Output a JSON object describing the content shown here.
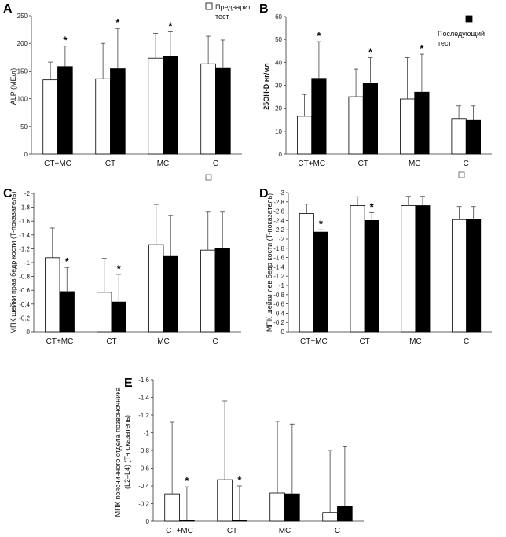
{
  "legend": {
    "pre_label": "Предварит.",
    "pre_label2": "тест",
    "post_label": "Последующий",
    "post_label2": "тест"
  },
  "chart_data": [
    {
      "panel": "A",
      "type": "bar",
      "ylabel": "ALP (МЕ/л)",
      "ylim": [
        0,
        250
      ],
      "reversed": false,
      "yticks": [
        "0",
        "50",
        "100",
        "150",
        "200",
        "250"
      ],
      "categories": [
        "CT+MC",
        "CT",
        "MC",
        "C"
      ],
      "series": [
        {
          "name": "Предварит. тест",
          "values": [
            134,
            136,
            173,
            163
          ],
          "errors": [
            32,
            64,
            45,
            50
          ]
        },
        {
          "name": "Последующий тест",
          "values": [
            158,
            154,
            177,
            156
          ],
          "errors": [
            37,
            73,
            44,
            50
          ]
        }
      ],
      "significant": [
        true,
        true,
        true,
        false
      ]
    },
    {
      "panel": "B",
      "type": "bar",
      "ylabel": "25OH-D нг/мл",
      "ylim": [
        0,
        60
      ],
      "reversed": false,
      "yticks": [
        "0",
        "10",
        "20",
        "30",
        "40",
        "50",
        "60"
      ],
      "categories": [
        "CT+MC",
        "CT",
        "MC",
        "C"
      ],
      "series": [
        {
          "name": "Предварит. тест",
          "values": [
            16.5,
            25,
            24,
            15.5
          ],
          "errors": [
            9.5,
            12,
            18,
            5.5
          ]
        },
        {
          "name": "Последующий тест",
          "values": [
            33,
            31,
            27,
            15
          ],
          "errors": [
            16,
            11,
            16.5,
            6
          ]
        }
      ],
      "significant": [
        true,
        true,
        true,
        false
      ]
    },
    {
      "panel": "C",
      "type": "bar",
      "ylabel": "МПК шейки прав бедр кости (T-показатель)",
      "ylim": [
        0,
        -2
      ],
      "reversed": true,
      "yticks": [
        "0",
        "-0.2",
        "-0.4",
        "-0.6",
        "-0.8",
        "-1",
        "-1.2",
        "-1.4",
        "-1.6",
        "-1.8",
        "-2"
      ],
      "categories": [
        "CT+MC",
        "CT",
        "MC",
        "C"
      ],
      "series": [
        {
          "name": "Предварит. тест",
          "values": [
            -1.07,
            -0.57,
            -1.26,
            -1.18
          ],
          "errors": [
            0.43,
            0.49,
            0.58,
            0.55
          ]
        },
        {
          "name": "Последующий тест",
          "values": [
            -0.58,
            -0.43,
            -1.1,
            -1.2
          ],
          "errors": [
            0.35,
            0.4,
            0.58,
            0.53
          ]
        }
      ],
      "significant": [
        true,
        true,
        false,
        false
      ]
    },
    {
      "panel": "D",
      "type": "bar",
      "ylabel": "МПК шейки лев бедр кости (T-показатель)",
      "ylim": [
        0,
        -3
      ],
      "reversed": true,
      "yticks": [
        "0",
        "-0.2",
        "-0.4",
        "-0.6",
        "-0.8",
        "-1",
        "-1.2",
        "-1.4",
        "-1.6",
        "-1.8",
        "-2",
        "-2.2",
        "-2.4",
        "-2.6",
        "-2.8",
        "-3"
      ],
      "categories": [
        "CT+MC",
        "CT",
        "MC",
        "C"
      ],
      "series": [
        {
          "name": "Предварит. тест",
          "values": [
            -2.55,
            -2.72,
            -2.72,
            -2.42
          ],
          "errors": [
            0.2,
            0.19,
            0.2,
            0.28
          ]
        },
        {
          "name": "Последующий тест",
          "values": [
            -2.15,
            -2.4,
            -2.72,
            -2.42
          ],
          "errors": [
            0.05,
            0.17,
            0.2,
            0.28
          ]
        }
      ],
      "significant": [
        true,
        true,
        false,
        false
      ]
    },
    {
      "panel": "E",
      "type": "bar",
      "ylabel": "МПК поясничного отдела позвоночника",
      "ylabel2": "(L2–L4) (T-показатель)",
      "ylim": [
        0,
        -1.6
      ],
      "reversed": true,
      "yticks": [
        "0",
        "-0.2",
        "-0.4",
        "-0.6",
        "-0.8",
        "-1",
        "-1.2",
        "-1.4",
        "-1.6"
      ],
      "categories": [
        "CT+MC",
        "CT",
        "MC",
        "C"
      ],
      "series": [
        {
          "name": "Предварит. тест",
          "values": [
            -0.31,
            -0.47,
            -0.32,
            -0.1
          ],
          "errors": [
            0.81,
            0.89,
            0.81,
            0.7
          ]
        },
        {
          "name": "Последующий тест",
          "values": [
            -0.01,
            -0.01,
            -0.31,
            -0.17
          ],
          "errors": [
            0.38,
            0.39,
            0.79,
            0.68
          ]
        }
      ],
      "significant": [
        true,
        true,
        false,
        false
      ]
    }
  ]
}
